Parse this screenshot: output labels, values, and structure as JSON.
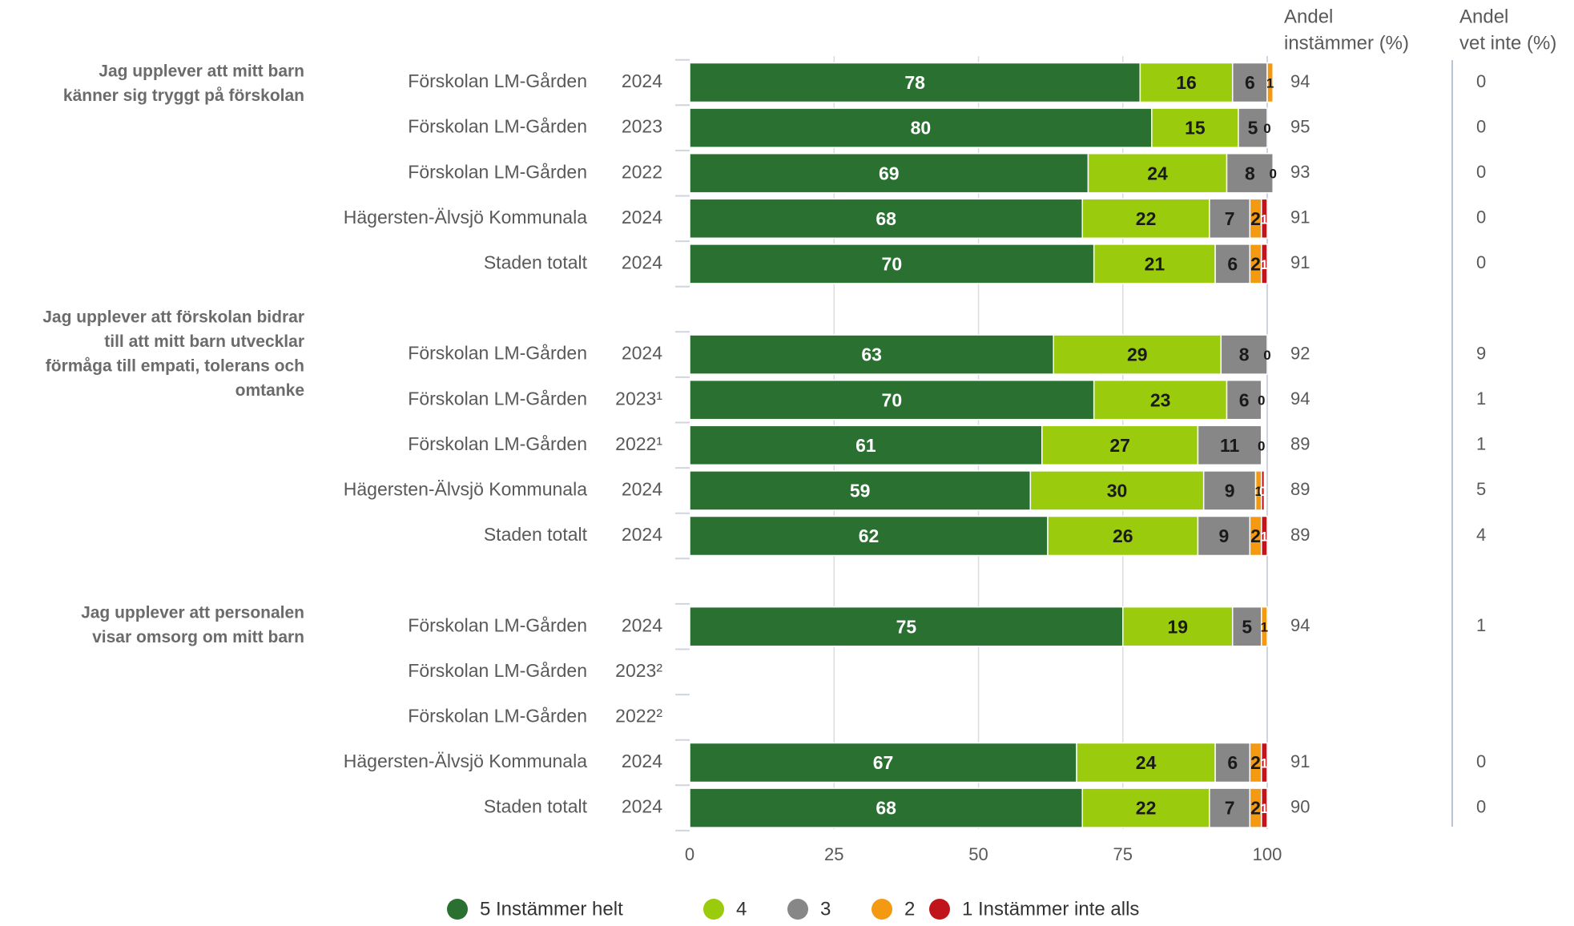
{
  "chart_data": {
    "type": "bar",
    "orientation": "horizontal",
    "stacked": true,
    "xlim": [
      0,
      100
    ],
    "x_ticks": [
      0,
      25,
      50,
      75,
      100
    ],
    "side_columns": [
      {
        "header": [
          "Andel",
          "instämmer (%)"
        ]
      },
      {
        "header": [
          "Andel",
          "vet inte (%)"
        ]
      }
    ],
    "series": [
      {
        "name": "5 Instämmer helt",
        "color": "#2a7131",
        "label_color": "#ffffff"
      },
      {
        "name": "4",
        "color": "#9acb0c",
        "label_color": "#1a1a1a"
      },
      {
        "name": "3",
        "color": "#878787",
        "label_color": "#1a1a1a"
      },
      {
        "name": "2",
        "color": "#f39a12",
        "label_color": "#1a1a1a"
      },
      {
        "name": "1 Instämmer inte alls",
        "color": "#c0161b",
        "label_color": "#ffffff"
      }
    ],
    "groups": [
      {
        "question": [
          "Jag upplever att mitt barn",
          "känner sig tryggt på förskolan"
        ],
        "rows": [
          {
            "category": "Förskolan LM-Gården",
            "year": "2024",
            "values": [
              78,
              16,
              6,
              1,
              0
            ],
            "labels": [
              "78",
              "16",
              "6",
              "1",
              ""
            ],
            "agree": "94",
            "dontknow": "0"
          },
          {
            "category": "Förskolan LM-Gården",
            "year": "2023",
            "values": [
              80,
              15,
              5,
              0,
              0
            ],
            "labels": [
              "80",
              "15",
              "5",
              "0",
              ""
            ],
            "agree": "95",
            "dontknow": "0"
          },
          {
            "category": "Förskolan LM-Gården",
            "year": "2022",
            "values": [
              69,
              24,
              8,
              0,
              0
            ],
            "labels": [
              "69",
              "24",
              "8",
              "0",
              ""
            ],
            "agree": "93",
            "dontknow": "0"
          },
          {
            "category": "Hägersten-Älvsjö Kommunala",
            "year": "2024",
            "values": [
              68,
              22,
              7,
              2,
              1
            ],
            "labels": [
              "68",
              "22",
              "7",
              "2",
              "1"
            ],
            "agree": "91",
            "dontknow": "0"
          },
          {
            "category": "Staden totalt",
            "year": "2024",
            "values": [
              70,
              21,
              6,
              2,
              1
            ],
            "labels": [
              "70",
              "21",
              "6",
              "2",
              "1"
            ],
            "agree": "91",
            "dontknow": "0"
          }
        ]
      },
      {
        "question": [
          "Jag upplever att förskolan bidrar",
          "till att mitt barn utvecklar",
          "förmåga till empati, tolerans och",
          "omtanke"
        ],
        "rows": [
          {
            "category": "Förskolan LM-Gården",
            "year": "2024",
            "values": [
              63,
              29,
              8,
              0,
              0
            ],
            "labels": [
              "63",
              "29",
              "8",
              "0",
              ""
            ],
            "agree": "92",
            "dontknow": "9"
          },
          {
            "category": "Förskolan LM-Gården",
            "year": "2023¹",
            "values": [
              70,
              23,
              6,
              0,
              0
            ],
            "labels": [
              "70",
              "23",
              "6",
              "0",
              ""
            ],
            "agree": "94",
            "dontknow": "1"
          },
          {
            "category": "Förskolan LM-Gården",
            "year": "2022¹",
            "values": [
              61,
              27,
              11,
              0,
              0
            ],
            "labels": [
              "61",
              "27",
              "11",
              "0",
              ""
            ],
            "agree": "89",
            "dontknow": "1"
          },
          {
            "category": "Hägersten-Älvsjö Kommunala",
            "year": "2024",
            "values": [
              59,
              30,
              9,
              1,
              0.5
            ],
            "labels": [
              "59",
              "30",
              "9",
              "1",
              "0"
            ],
            "agree": "89",
            "dontknow": "5"
          },
          {
            "category": "Staden totalt",
            "year": "2024",
            "values": [
              62,
              26,
              9,
              2,
              1
            ],
            "labels": [
              "62",
              "26",
              "9",
              "2",
              "1"
            ],
            "agree": "89",
            "dontknow": "4"
          }
        ]
      },
      {
        "question": [
          "Jag upplever att personalen",
          "visar omsorg om mitt barn"
        ],
        "rows": [
          {
            "category": "Förskolan LM-Gården",
            "year": "2024",
            "values": [
              75,
              19,
              5,
              1,
              0
            ],
            "labels": [
              "75",
              "19",
              "5",
              "1",
              ""
            ],
            "agree": "94",
            "dontknow": "1"
          },
          {
            "category": "Förskolan LM-Gården",
            "year": "2023²",
            "values": null,
            "labels": null,
            "agree": "",
            "dontknow": ""
          },
          {
            "category": "Förskolan LM-Gården",
            "year": "2022²",
            "values": null,
            "labels": null,
            "agree": "",
            "dontknow": ""
          },
          {
            "category": "Hägersten-Älvsjö Kommunala",
            "year": "2024",
            "values": [
              67,
              24,
              6,
              2,
              1
            ],
            "labels": [
              "67",
              "24",
              "6",
              "2",
              "1"
            ],
            "agree": "91",
            "dontknow": "0"
          },
          {
            "category": "Staden totalt",
            "year": "2024",
            "values": [
              68,
              22,
              7,
              2,
              1
            ],
            "labels": [
              "68",
              "22",
              "7",
              "2",
              "1"
            ],
            "agree": "90",
            "dontknow": "0"
          }
        ]
      }
    ]
  }
}
